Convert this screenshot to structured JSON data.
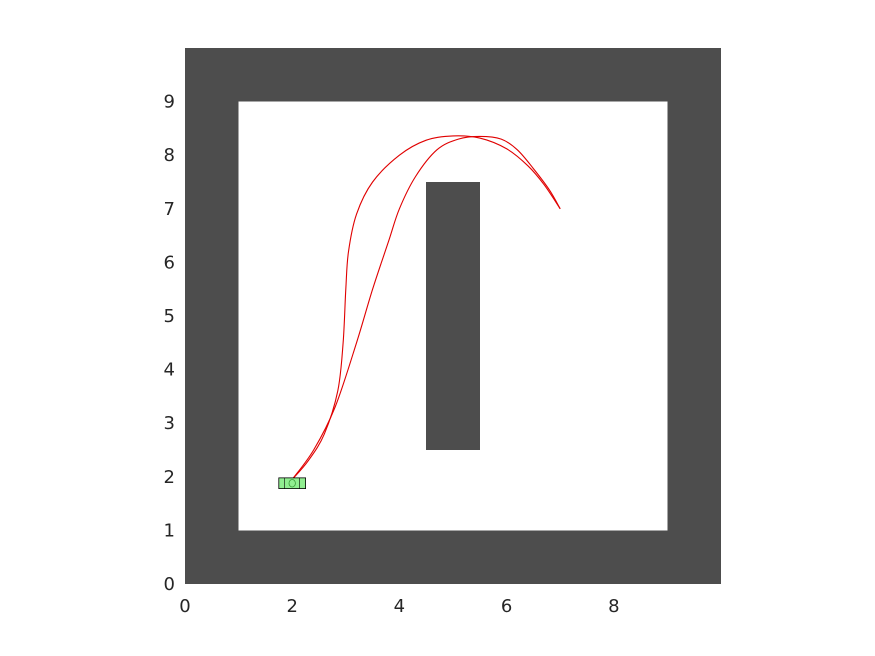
{
  "chart_data": {
    "type": "line",
    "title": "",
    "xlabel": "",
    "ylabel": "",
    "xlim": [
      0,
      10
    ],
    "ylim": [
      0,
      10
    ],
    "x_ticks": [
      "0",
      "2",
      "4",
      "6",
      "8"
    ],
    "y_ticks": [
      "0",
      "1",
      "2",
      "3",
      "4",
      "5",
      "6",
      "7",
      "8",
      "9"
    ],
    "grid": false,
    "legend": "none",
    "colors": {
      "obstacle": "#4d4d4d",
      "free_space": "#ffffff",
      "path": "#e00000",
      "vehicle_outline": "#000000",
      "vehicle_fill": "#90ee90"
    },
    "obstacles": [
      {
        "name": "wall-bottom",
        "x": [
          0,
          10
        ],
        "y": [
          0,
          1
        ]
      },
      {
        "name": "wall-top",
        "x": [
          0,
          10
        ],
        "y": [
          9,
          10
        ]
      },
      {
        "name": "wall-left",
        "x": [
          0,
          1
        ],
        "y": [
          0,
          10
        ]
      },
      {
        "name": "wall-right",
        "x": [
          9,
          10
        ],
        "y": [
          0,
          10
        ]
      },
      {
        "name": "center-pillar",
        "x": [
          4.5,
          5.5
        ],
        "y": [
          2.5,
          7.5
        ]
      }
    ],
    "series": [
      {
        "x": [
          2.0,
          2.3,
          2.6,
          2.85,
          2.95,
          3.0,
          3.05,
          3.2,
          3.5,
          4.0,
          4.5,
          5.0,
          5.5,
          6.0,
          6.4,
          6.7,
          7.0
        ],
        "y": [
          1.95,
          2.3,
          2.8,
          3.6,
          4.5,
          5.5,
          6.2,
          6.9,
          7.5,
          8.0,
          8.28,
          8.36,
          8.32,
          8.12,
          7.8,
          7.45,
          7.0
        ]
      },
      {
        "x": [
          2.0,
          2.4,
          2.8,
          3.2,
          3.5,
          3.8,
          4.0,
          4.3,
          4.7,
          5.1,
          5.5,
          5.9,
          6.2,
          6.5,
          6.8,
          7.0
        ],
        "y": [
          1.95,
          2.5,
          3.3,
          4.5,
          5.5,
          6.4,
          7.0,
          7.6,
          8.1,
          8.3,
          8.35,
          8.3,
          8.1,
          7.75,
          7.35,
          7.0
        ]
      }
    ],
    "vehicle": {
      "x": 2.0,
      "y": 1.88,
      "width": 0.5,
      "height": 0.2
    }
  }
}
